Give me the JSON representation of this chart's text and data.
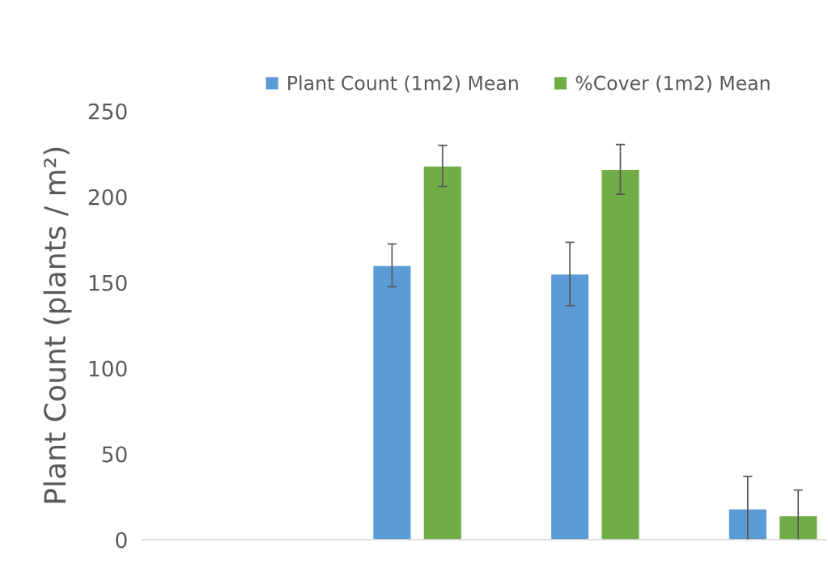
{
  "chart_data": {
    "type": "bar",
    "ylabel": "Plant Count (plants / m²)",
    "categories": [
      null,
      null,
      null,
      null
    ],
    "series": [
      {
        "name": "Plant Count (1m2) Mean",
        "color": "#5b9bd5",
        "values": [
          null,
          160,
          155,
          18
        ],
        "errors": [
          null,
          12.5,
          18.5,
          19
        ]
      },
      {
        "name": "%Cover (1m2) Mean",
        "color": "#70ad47",
        "values": [
          null,
          218,
          216,
          14
        ],
        "errors": [
          null,
          12,
          14.5,
          15
        ]
      }
    ],
    "ylim": [
      0,
      250
    ],
    "yticks": [
      0,
      50,
      100,
      150,
      200,
      250
    ],
    "grid": false,
    "legend": "top"
  }
}
